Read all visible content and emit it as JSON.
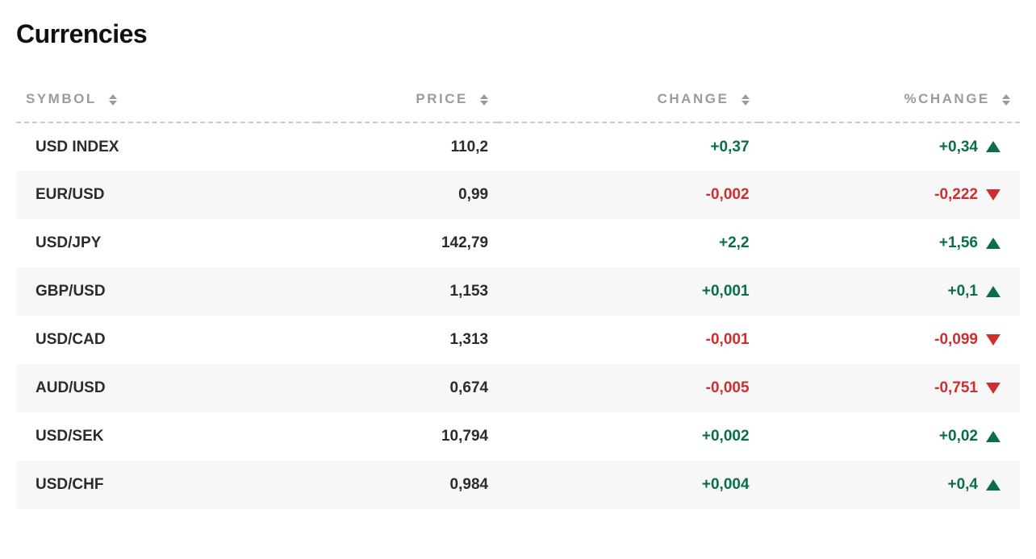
{
  "title": "Currencies",
  "columns": {
    "symbol": "SYMBOL",
    "price": "PRICE",
    "change": "CHANGE",
    "pct_change": "%CHANGE"
  },
  "colors": {
    "positive": "#0a6e4a",
    "negative": "#cf2e2e",
    "header_text": "#9b9b9b",
    "row_alt_bg": "#f7f7f7",
    "text": "#2b2b2b",
    "dashed_border": "#c9c9c9"
  },
  "rows": [
    {
      "symbol": "USD INDEX",
      "price": "110,2",
      "change": "+0,37",
      "pct": "+0,34",
      "dir": "up"
    },
    {
      "symbol": "EUR/USD",
      "price": "0,99",
      "change": "-0,002",
      "pct": "-0,222",
      "dir": "down"
    },
    {
      "symbol": "USD/JPY",
      "price": "142,79",
      "change": "+2,2",
      "pct": "+1,56",
      "dir": "up"
    },
    {
      "symbol": "GBP/USD",
      "price": "1,153",
      "change": "+0,001",
      "pct": "+0,1",
      "dir": "up"
    },
    {
      "symbol": "USD/CAD",
      "price": "1,313",
      "change": "-0,001",
      "pct": "-0,099",
      "dir": "down"
    },
    {
      "symbol": "AUD/USD",
      "price": "0,674",
      "change": "-0,005",
      "pct": "-0,751",
      "dir": "down"
    },
    {
      "symbol": "USD/SEK",
      "price": "10,794",
      "change": "+0,002",
      "pct": "+0,02",
      "dir": "up"
    },
    {
      "symbol": "USD/CHF",
      "price": "0,984",
      "change": "+0,004",
      "pct": "+0,4",
      "dir": "up"
    }
  ]
}
